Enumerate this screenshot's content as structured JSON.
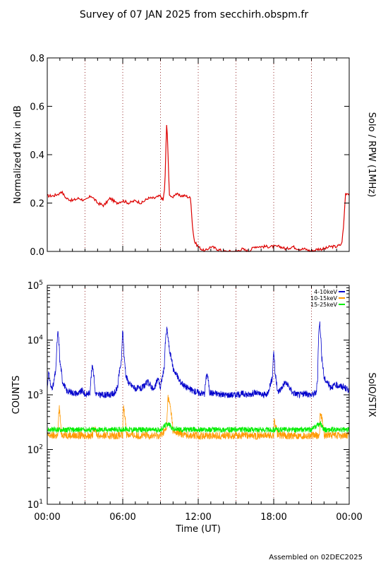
{
  "title": "Survey of 07 JAN 2025 from secchirh.obspm.fr",
  "footer": "Assembled on 02DEC2025",
  "colors": {
    "rpw": "#dd0000",
    "band1": "#0000cc",
    "band2": "#ff9900",
    "band3": "#00ee00",
    "vline": "#993333"
  },
  "chart_data": [
    {
      "type": "line",
      "ylabel": "Normalized flux in dB",
      "right_label": "Solo / RPW (1MHz)",
      "ylim": [
        0,
        0.8
      ],
      "xlim": [
        0,
        24
      ],
      "yticks": [
        "0.0",
        "0.2",
        "0.4",
        "0.6",
        "0.8"
      ],
      "vlines": [
        3,
        6,
        9,
        12,
        15,
        18,
        21
      ],
      "series": [
        {
          "x": [
            0,
            0.5,
            1,
            1.1,
            1.5,
            2,
            2.5,
            3,
            3.5,
            4,
            4.5,
            5,
            5.5,
            6,
            6.5,
            7,
            7.5,
            8,
            8.5,
            9,
            9.2,
            9.35,
            9.5,
            9.7,
            9.9,
            10.2,
            10.5,
            11,
            11.4,
            11.55,
            11.7,
            12,
            12.5,
            13,
            13.5,
            14,
            14.5,
            15,
            15.5,
            16,
            16.5,
            17,
            17.5,
            18,
            18.5,
            19,
            19.5,
            20,
            20.5,
            21,
            21.5,
            22,
            22.5,
            23,
            23.4,
            23.55,
            23.7,
            24
          ],
          "values": [
            0.23,
            0.23,
            0.24,
            0.25,
            0.22,
            0.21,
            0.22,
            0.21,
            0.23,
            0.2,
            0.19,
            0.22,
            0.2,
            0.21,
            0.2,
            0.21,
            0.2,
            0.22,
            0.22,
            0.23,
            0.21,
            0.27,
            0.55,
            0.24,
            0.22,
            0.24,
            0.23,
            0.23,
            0.22,
            0.1,
            0.04,
            0.02,
            0.0,
            0.02,
            0.01,
            0.0,
            0.0,
            0.0,
            0.01,
            0.0,
            0.02,
            0.02,
            0.02,
            0.02,
            0.02,
            0.01,
            0.02,
            0.01,
            0.01,
            0.0,
            0.01,
            0.01,
            0.02,
            0.02,
            0.03,
            0.1,
            0.24,
            0.24
          ]
        }
      ]
    },
    {
      "type": "line",
      "ylabel": "COUNTS",
      "right_label": "SolO/STIX",
      "yscale": "log",
      "ylim": [
        10,
        100000
      ],
      "xlim": [
        0,
        24
      ],
      "xlabel": "Time (UT)",
      "xticks": [
        "00:00",
        "06:00",
        "12:00",
        "18:00",
        "00:00"
      ],
      "vlines": [
        3,
        6,
        9,
        12,
        15,
        18,
        21
      ],
      "legend_position": "top-right",
      "series": [
        {
          "name": "4-10keV",
          "x": [
            0,
            0.1,
            0.3,
            0.5,
            0.7,
            0.85,
            1.0,
            1.2,
            1.5,
            2,
            2.5,
            2.8,
            3,
            3.4,
            3.6,
            3.8,
            4,
            5,
            5.4,
            5.6,
            5.9,
            6.0,
            6.1,
            6.25,
            6.5,
            7,
            7.5,
            8,
            8.5,
            8.8,
            9,
            9.3,
            9.5,
            9.7,
            10,
            10.5,
            11,
            11.5,
            12,
            12.5,
            12.7,
            12.9,
            13.5,
            14,
            15,
            15.5,
            16,
            16.5,
            17,
            17.5,
            17.9,
            18.0,
            18.1,
            18.3,
            18.6,
            18.9,
            19.5,
            20,
            20.5,
            21,
            21.2,
            21.4,
            21.5,
            21.65,
            21.8,
            22,
            22.5,
            23,
            23.5,
            24
          ],
          "values": [
            1200,
            2500,
            1300,
            1500,
            3000,
            14000,
            4000,
            1800,
            1200,
            1100,
            1050,
            1200,
            1000,
            1100,
            3500,
            1100,
            1000,
            1000,
            1100,
            1400,
            4000,
            15000,
            5000,
            2200,
            1600,
            1300,
            1300,
            1700,
            1200,
            2000,
            1300,
            3000,
            16000,
            6500,
            3000,
            1800,
            1400,
            1200,
            1100,
            1050,
            2500,
            1100,
            1050,
            1000,
            1000,
            1050,
            1000,
            1100,
            1000,
            1000,
            2000,
            6500,
            2500,
            1100,
            1300,
            1700,
            1100,
            1000,
            1050,
            1000,
            1050,
            1100,
            2200,
            22000,
            5000,
            2000,
            1400,
            1500,
            1400,
            1200
          ]
        },
        {
          "name": "10-15keV",
          "x": [
            0,
            0.5,
            0.85,
            0.95,
            1.1,
            2,
            3,
            3.6,
            3.7,
            4,
            5,
            6.0,
            6.05,
            6.3,
            7,
            8,
            9,
            9.5,
            9.6,
            10,
            11,
            12,
            13,
            14,
            15,
            16,
            17,
            18.0,
            18.05,
            18.3,
            19,
            20,
            21,
            21.65,
            21.7,
            22,
            23,
            24
          ],
          "values": [
            180,
            180,
            180,
            600,
            190,
            180,
            180,
            180,
            260,
            180,
            180,
            180,
            600,
            190,
            180,
            180,
            180,
            240,
            900,
            210,
            185,
            180,
            180,
            180,
            180,
            180,
            180,
            180,
            350,
            185,
            180,
            180,
            180,
            180,
            500,
            185,
            180,
            180
          ]
        },
        {
          "name": "15-25keV",
          "x": [
            0,
            1,
            2,
            3,
            4,
            5,
            6,
            7,
            8,
            9,
            9.6,
            10,
            11,
            12,
            13,
            14,
            15,
            16,
            17,
            18,
            19,
            20,
            21,
            21.7,
            22,
            23,
            24
          ],
          "values": [
            230,
            230,
            230,
            230,
            230,
            230,
            235,
            230,
            230,
            230,
            300,
            235,
            230,
            230,
            230,
            230,
            230,
            230,
            230,
            230,
            230,
            230,
            230,
            300,
            230,
            230,
            230
          ]
        }
      ]
    }
  ]
}
